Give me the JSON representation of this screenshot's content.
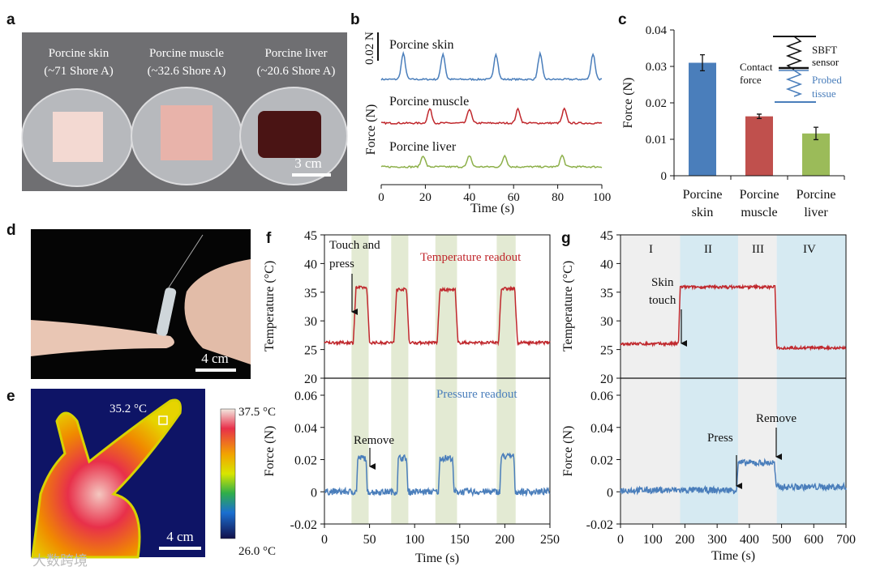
{
  "panels": {
    "a": {
      "label": "a",
      "samples": [
        "Porcine skin",
        "Porcine muscle",
        "Porcine liver"
      ],
      "hardness": [
        "(~71 Shore A)",
        "(~32.6 Shore A)",
        "(~20.6 Shore A)"
      ],
      "scale": "3 cm"
    },
    "b": {
      "label": "b"
    },
    "c": {
      "label": "c",
      "inset": {
        "top": "SBFT",
        "top2": "sensor",
        "contact": "Contact",
        "contact2": "force",
        "tissue": "Probed",
        "tissue2": "tissue"
      }
    },
    "d": {
      "label": "d",
      "scale": "4 cm"
    },
    "e": {
      "label": "e",
      "spot": "35.2 °C",
      "max": "37.5 °C",
      "min": "26.0 °C",
      "scale": "4 cm"
    },
    "f": {
      "label": "f",
      "touch": "Touch and",
      "touch2": "press",
      "remove": "Remove",
      "temp_legend": "Temperature readout",
      "pres_legend": "Pressure readout"
    },
    "g": {
      "label": "g",
      "regions": [
        "I",
        "II",
        "III",
        "IV"
      ],
      "skin": "Skin",
      "skin2": "touch",
      "press": "Press",
      "remove": "Remove"
    }
  },
  "watermark": "大数跨境",
  "colors": {
    "blue": "#4a7ebb",
    "red": "#c0282d",
    "green": "#8db04a",
    "bar_red": "#c0504d",
    "bar_green": "#9bbb59",
    "band_green": "#e3ead3",
    "band_grey": "#efefef",
    "band_blue": "#d6eaf2"
  },
  "chart_data": [
    {
      "id": "b",
      "type": "line",
      "xlabel": "Time (s)",
      "ylabel": "Force (N)",
      "xlim": [
        0,
        100
      ],
      "xticks": [
        0,
        20,
        40,
        60,
        80,
        100
      ],
      "scale_bar": "0.02 N",
      "series": [
        {
          "name": "Porcine skin",
          "peaks_t": [
            10,
            28,
            52,
            72,
            96
          ],
          "peak_force": 0.018
        },
        {
          "name": "Porcine muscle",
          "peaks_t": [
            22,
            40,
            62,
            83
          ],
          "peak_force": 0.01
        },
        {
          "name": "Porcine liver",
          "peaks_t": [
            19,
            40,
            56,
            82
          ],
          "peak_force": 0.008
        }
      ]
    },
    {
      "id": "c",
      "type": "bar",
      "ylabel": "Force (N)",
      "ylim": [
        0,
        0.04
      ],
      "yticks": [
        0,
        0.01,
        0.02,
        0.03,
        0.04
      ],
      "categories": [
        [
          "Porcine",
          "skin"
        ],
        [
          "Porcine",
          "muscle"
        ],
        [
          "Porcine",
          "liver"
        ]
      ],
      "values": [
        0.031,
        0.0163,
        0.0116
      ],
      "errors": [
        0.0022,
        0.0006,
        0.0017
      ]
    },
    {
      "id": "f",
      "type": "line",
      "xlabel": "Time (s)",
      "xlim": [
        0,
        250
      ],
      "xticks": [
        0,
        50,
        100,
        150,
        200,
        250
      ],
      "top": {
        "ylabel": "Temperature (°C)",
        "ylim": [
          20,
          45
        ],
        "yticks": [
          20,
          25,
          30,
          35,
          40,
          45
        ]
      },
      "bottom": {
        "ylabel": "Force (N)",
        "ylim": [
          -0.02,
          0.07
        ],
        "yticks": [
          -0.02,
          0,
          0.02,
          0.04,
          0.06
        ]
      },
      "bands": [
        [
          30,
          49
        ],
        [
          74,
          93
        ],
        [
          123,
          147
        ],
        [
          191,
          212
        ]
      ],
      "temperature": {
        "baseline": 26.2,
        "pulses": [
          [
            35,
            47,
            35.8
          ],
          [
            80,
            91,
            35.5
          ],
          [
            128,
            145,
            35.4
          ],
          [
            196,
            211,
            35.6
          ]
        ]
      },
      "force": {
        "baseline": 0,
        "pulses": [
          [
            37,
            46,
            0.021
          ],
          [
            82,
            91,
            0.021
          ],
          [
            128,
            142,
            0.021
          ],
          [
            196,
            210,
            0.022
          ]
        ]
      }
    },
    {
      "id": "g",
      "type": "line",
      "xlabel": "Time (s)",
      "xlim": [
        0,
        700
      ],
      "xticks": [
        0,
        100,
        200,
        300,
        400,
        500,
        600,
        700
      ],
      "top": {
        "ylabel": "Temperature (°C)",
        "ylim": [
          20,
          45
        ],
        "yticks": [
          20,
          25,
          30,
          35,
          40,
          45
        ]
      },
      "bottom": {
        "ylabel": "Force (N)",
        "ylim": [
          -0.02,
          0.07
        ],
        "yticks": [
          -0.02,
          0,
          0.02,
          0.04,
          0.06
        ]
      },
      "regions": [
        [
          0,
          185
        ],
        [
          185,
          365
        ],
        [
          365,
          485
        ],
        [
          485,
          700
        ]
      ],
      "temperature": {
        "segments": [
          [
            0,
            180,
            26.0
          ],
          [
            185,
            480,
            35.9
          ],
          [
            485,
            700,
            25.3
          ]
        ]
      },
      "force": {
        "segments": [
          [
            0,
            360,
            0.001
          ],
          [
            365,
            478,
            0.018
          ],
          [
            483,
            700,
            0.003
          ]
        ]
      }
    }
  ]
}
